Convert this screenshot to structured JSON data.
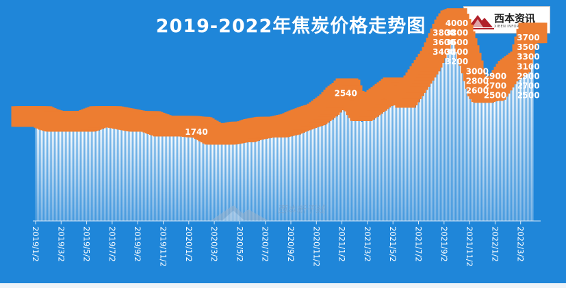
{
  "title": "2019-2022年焦炭价格走势图",
  "logo": {
    "text": "西本资讯",
    "subtext": "XIBEN INFORMATION",
    "icon": "mountain-logo-icon"
  },
  "watermark": {
    "text": "西本新干线",
    "icon": "mountain-logo-icon"
  },
  "colors": {
    "background": "#1f86d9",
    "bar_top": "#ffffff",
    "bar_bottom": "#7eb6e6",
    "label_fill": "#ed7d31",
    "label_text": "#ffffff"
  },
  "chart_data": {
    "type": "bar",
    "title": "2019-2022年焦炭价格走势图",
    "xlabel": "",
    "ylabel": "",
    "ylim": [
      0,
      4200
    ],
    "grid": false,
    "tick_labels": [
      "2019/1/2",
      "2019/3/2",
      "2019/5/2",
      "2019/7/2",
      "2019/9/2",
      "2019/11/2",
      "2020/1/2",
      "2020/3/2",
      "2020/5/2",
      "2020/7/2",
      "2020/9/2",
      "2020/11/2",
      "2021/1/2",
      "2021/3/2",
      "2021/5/2",
      "2021/7/2",
      "2021/9/2",
      "2021/11/2",
      "2022/1/2",
      "2022/3/2"
    ],
    "visible_labels": [
      {
        "month": 12.6,
        "label": "1740"
      },
      {
        "month": 24.3,
        "label": "2540"
      },
      {
        "month": 33.0,
        "label": "4000"
      },
      {
        "month": 33.0,
        "label": "3800"
      },
      {
        "month": 32.0,
        "label": "3800"
      },
      {
        "month": 33.0,
        "label": "3600"
      },
      {
        "month": 32.0,
        "label": "3600"
      },
      {
        "month": 33.0,
        "label": "3400"
      },
      {
        "month": 32.0,
        "label": "3400"
      },
      {
        "month": 33.0,
        "label": "3200"
      },
      {
        "month": 34.6,
        "label": "3000"
      },
      {
        "month": 34.6,
        "label": "2800"
      },
      {
        "month": 34.6,
        "label": "2600"
      },
      {
        "month": 36.0,
        "label": "2900"
      },
      {
        "month": 36.0,
        "label": "2700"
      },
      {
        "month": 36.0,
        "label": "2500"
      },
      {
        "month": 38.6,
        "label": "3700"
      },
      {
        "month": 38.6,
        "label": "3500"
      },
      {
        "month": 38.6,
        "label": "3300"
      },
      {
        "month": 38.6,
        "label": "3100"
      },
      {
        "month": 38.6,
        "label": "2900"
      },
      {
        "month": 38.6,
        "label": "2700"
      },
      {
        "month": 38.6,
        "label": "2500"
      }
    ],
    "series": [
      {
        "values": [
          [
            0,
            1960
          ],
          [
            0.5,
            1960
          ],
          [
            1,
            1900
          ],
          [
            1.5,
            1860
          ],
          [
            2,
            1860
          ],
          [
            3,
            1860
          ],
          [
            4,
            1860
          ],
          [
            5,
            1960
          ],
          [
            6,
            1960
          ],
          [
            7,
            1910
          ],
          [
            8,
            1860
          ],
          [
            9,
            1860
          ],
          [
            10,
            1760
          ],
          [
            11,
            1760
          ],
          [
            12,
            1760
          ],
          [
            12.6,
            1740
          ],
          [
            13,
            1740
          ],
          [
            14,
            1590
          ],
          [
            15,
            1590
          ],
          [
            16,
            1640
          ],
          [
            16.5,
            1640
          ],
          [
            17,
            1690
          ],
          [
            18,
            1740
          ],
          [
            19,
            1740
          ],
          [
            20,
            1800
          ],
          [
            20.5,
            1860
          ],
          [
            21,
            1910
          ],
          [
            21.5,
            1960
          ],
          [
            22,
            2000
          ],
          [
            22.5,
            2100
          ],
          [
            23,
            2200
          ],
          [
            23.5,
            2350
          ],
          [
            24,
            2450
          ],
          [
            24.3,
            2540
          ],
          [
            24.6,
            2540
          ],
          [
            25,
            2250
          ],
          [
            25.5,
            2060
          ],
          [
            26,
            2150
          ],
          [
            26.5,
            2250
          ],
          [
            27,
            2350
          ],
          [
            27.5,
            2450
          ],
          [
            28,
            2560
          ],
          [
            28.5,
            2500
          ],
          [
            29,
            2350
          ],
          [
            29.5,
            2550
          ],
          [
            30,
            2750
          ],
          [
            30.5,
            2950
          ],
          [
            31,
            3150
          ],
          [
            31.5,
            3450
          ],
          [
            32,
            3750
          ],
          [
            32.5,
            3950
          ],
          [
            33,
            4000
          ],
          [
            33.5,
            3650
          ],
          [
            34,
            3200
          ],
          [
            34.6,
            2600
          ],
          [
            35,
            2450
          ],
          [
            35.5,
            2500
          ],
          [
            36,
            2500
          ],
          [
            36.5,
            2700
          ],
          [
            37,
            2900
          ],
          [
            37.5,
            3000
          ],
          [
            38,
            3100
          ],
          [
            38.6,
            3700
          ],
          [
            39,
            3700
          ]
        ]
      }
    ]
  }
}
